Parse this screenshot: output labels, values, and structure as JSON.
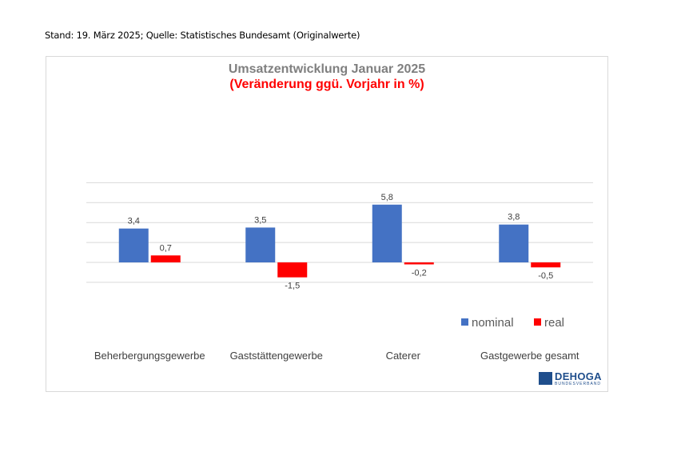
{
  "header": {
    "note": "Stand: 19. März 2025; Quelle: Statistisches Bundesamt (Originalwerte)"
  },
  "logo": {
    "text": "DEHOGA",
    "subtext": "BUNDESVERBAND"
  },
  "colors": {
    "nominal": "#4472c4",
    "real": "#ff0000",
    "title": "#7f7f7f",
    "subtitle": "#ff0000",
    "grid": "#d9d9d9"
  },
  "chart_data": {
    "type": "bar",
    "title": "Umsatzentwicklung Januar 2025",
    "subtitle": "(Veränderung ggü. Vorjahr in %)",
    "categories": [
      "Beherbergungsgewerbe",
      "Gaststättengewerbe",
      "Caterer",
      "Gastgewerbe gesamt"
    ],
    "series": [
      {
        "name": "nominal",
        "values": [
          3.4,
          3.5,
          5.8,
          3.8
        ],
        "labels": [
          "3,4",
          "3,5",
          "5,8",
          "3,8"
        ]
      },
      {
        "name": "real",
        "values": [
          0.7,
          -1.5,
          -0.2,
          -0.5
        ],
        "labels": [
          "0,7",
          "-1,5",
          "-0,2",
          "-0,5"
        ]
      }
    ],
    "ylim": [
      -4,
      8
    ],
    "grid": true,
    "legend_position": "bottom-right"
  }
}
